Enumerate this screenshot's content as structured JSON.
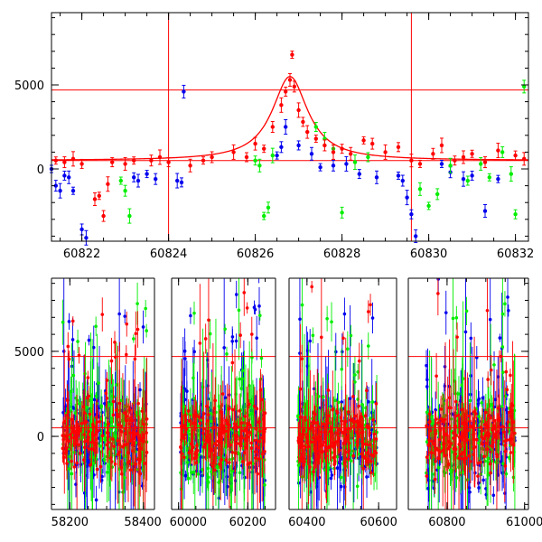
{
  "colors": {
    "red": "#ff0000",
    "green": "#00ee00",
    "blue": "#0000ee",
    "axis": "#000000"
  },
  "chart_data": [
    {
      "type": "scatter",
      "title": "",
      "xlabel": "",
      "ylabel": "",
      "xlim": [
        60821.3,
        60832.3
      ],
      "ylim": [
        -4300,
        9300
      ],
      "xticks": [
        60822,
        60824,
        60826,
        60828,
        60830,
        60832
      ],
      "xtick_labels": [
        "60822",
        "60824",
        "60826",
        "60828",
        "60830",
        "60832"
      ],
      "yticks": [
        0,
        5000
      ],
      "ytick_labels": [
        "0",
        "5000"
      ],
      "hlines": [
        4700,
        500
      ],
      "vlines": [
        60824.0,
        60829.6
      ],
      "model_curve": {
        "type": "lorentzian",
        "center": 60826.8,
        "peak": 5500,
        "baseline": 500,
        "halfwidth": 0.5
      },
      "series": [
        {
          "name": "red",
          "color": "#ff0000",
          "points": [
            [
              60821.4,
              500
            ],
            [
              60821.6,
              400
            ],
            [
              60821.8,
              600
            ],
            [
              60822.0,
              300
            ],
            [
              60822.3,
              -1800
            ],
            [
              60822.4,
              -1600
            ],
            [
              60822.5,
              -2800
            ],
            [
              60822.6,
              -900
            ],
            [
              60822.7,
              400
            ],
            [
              60823.0,
              300
            ],
            [
              60823.2,
              500
            ],
            [
              60823.6,
              500
            ],
            [
              60823.8,
              700
            ],
            [
              60824.0,
              400
            ],
            [
              60824.5,
              200
            ],
            [
              60824.8,
              500
            ],
            [
              60825.0,
              700
            ],
            [
              60825.5,
              1000
            ],
            [
              60825.8,
              700
            ],
            [
              60826.0,
              1500
            ],
            [
              60826.2,
              1200
            ],
            [
              60826.4,
              2500
            ],
            [
              60826.6,
              3800
            ],
            [
              60826.7,
              4600
            ],
            [
              60826.8,
              5300
            ],
            [
              60826.85,
              6800
            ],
            [
              60826.9,
              4900
            ],
            [
              60827.0,
              3500
            ],
            [
              60827.1,
              2800
            ],
            [
              60827.2,
              2200
            ],
            [
              60827.4,
              1800
            ],
            [
              60827.6,
              1400
            ],
            [
              60827.8,
              1000
            ],
            [
              60828.0,
              1200
            ],
            [
              60828.2,
              900
            ],
            [
              60828.5,
              1700
            ],
            [
              60828.7,
              1500
            ],
            [
              60829.0,
              1000
            ],
            [
              60829.3,
              1300
            ],
            [
              60829.6,
              500
            ],
            [
              60829.8,
              300
            ],
            [
              60830.1,
              900
            ],
            [
              60830.3,
              1400
            ],
            [
              60830.6,
              500
            ],
            [
              60830.8,
              700
            ],
            [
              60831.0,
              900
            ],
            [
              60831.3,
              400
            ],
            [
              60831.6,
              1100
            ],
            [
              60832.0,
              800
            ],
            [
              60832.2,
              600
            ]
          ]
        },
        {
          "name": "green",
          "color": "#00ee00",
          "points": [
            [
              60822.9,
              -700
            ],
            [
              60823.0,
              -1300
            ],
            [
              60823.1,
              -2800
            ],
            [
              60826.0,
              500
            ],
            [
              60826.1,
              200
            ],
            [
              60826.2,
              -2800
            ],
            [
              60826.3,
              -2300
            ],
            [
              60826.4,
              800
            ],
            [
              60827.4,
              2500
            ],
            [
              60827.6,
              1800
            ],
            [
              60827.8,
              1200
            ],
            [
              60828.0,
              -2600
            ],
            [
              60828.3,
              400
            ],
            [
              60828.6,
              700
            ],
            [
              60829.8,
              -1200
            ],
            [
              60830.0,
              -2200
            ],
            [
              60830.2,
              -1500
            ],
            [
              60830.5,
              200
            ],
            [
              60830.9,
              -700
            ],
            [
              60831.2,
              300
            ],
            [
              60831.4,
              -500
            ],
            [
              60831.7,
              1000
            ],
            [
              60831.9,
              -300
            ],
            [
              60832.0,
              -2700
            ],
            [
              60832.2,
              4900
            ]
          ]
        },
        {
          "name": "blue",
          "color": "#0000ee",
          "points": [
            [
              60821.3,
              0
            ],
            [
              60821.4,
              -1000
            ],
            [
              60821.5,
              -1300
            ],
            [
              60821.6,
              -400
            ],
            [
              60821.7,
              -500
            ],
            [
              60821.8,
              -1300
            ],
            [
              60822.0,
              -3600
            ],
            [
              60822.1,
              -4100
            ],
            [
              60823.2,
              -500
            ],
            [
              60823.3,
              -700
            ],
            [
              60823.5,
              -300
            ],
            [
              60823.7,
              -600
            ],
            [
              60824.2,
              -700
            ],
            [
              60824.3,
              -800
            ],
            [
              60824.35,
              4600
            ],
            [
              60826.5,
              800
            ],
            [
              60826.6,
              1300
            ],
            [
              60826.7,
              2500
            ],
            [
              60827.0,
              1400
            ],
            [
              60827.3,
              900
            ],
            [
              60827.5,
              100
            ],
            [
              60827.8,
              200
            ],
            [
              60828.1,
              300
            ],
            [
              60828.4,
              -300
            ],
            [
              60828.8,
              -500
            ],
            [
              60829.3,
              -400
            ],
            [
              60829.4,
              -700
            ],
            [
              60829.5,
              -1700
            ],
            [
              60829.6,
              -2700
            ],
            [
              60829.7,
              -4000
            ],
            [
              60830.3,
              300
            ],
            [
              60830.5,
              -200
            ],
            [
              60830.8,
              -600
            ],
            [
              60831.0,
              -400
            ],
            [
              60831.3,
              -2500
            ],
            [
              60831.6,
              -600
            ]
          ]
        }
      ]
    },
    {
      "type": "scatter",
      "title": "",
      "xlabel": "",
      "ylabel": "",
      "segments": [
        {
          "xlim": [
            58150,
            58430
          ],
          "xticks": [
            58200,
            58400
          ],
          "xtick_labels": [
            "58200",
            "58400"
          ]
        },
        {
          "xlim": [
            59980,
            60280
          ],
          "xticks": [
            60000,
            60200
          ],
          "xtick_labels": [
            "60000",
            "60200"
          ]
        },
        {
          "xlim": [
            60350,
            60650
          ],
          "xticks": [
            60400,
            60600
          ],
          "xtick_labels": [
            "60400",
            "60600"
          ]
        },
        {
          "xlim": [
            60700,
            61010
          ],
          "xticks": [
            60800,
            61000
          ],
          "xtick_labels": [
            "60800",
            "61000"
          ]
        }
      ],
      "ylim": [
        -4300,
        9300
      ],
      "yticks": [
        0,
        5000
      ],
      "ytick_labels": [
        "0",
        "5000"
      ],
      "hlines": [
        4700,
        500
      ],
      "data_windows": [
        [
          58180,
          58410
        ],
        [
          60005,
          60250
        ],
        [
          60375,
          60595
        ],
        [
          60745,
          60975
        ]
      ],
      "series": [
        {
          "name": "blue",
          "color": "#0000ee",
          "offset": -150,
          "scatter": 1400
        },
        {
          "name": "green",
          "color": "#00ee00",
          "offset": -50,
          "scatter": 1300
        },
        {
          "name": "red",
          "color": "#ff0000",
          "offset": 0,
          "scatter": 1000
        }
      ]
    }
  ]
}
